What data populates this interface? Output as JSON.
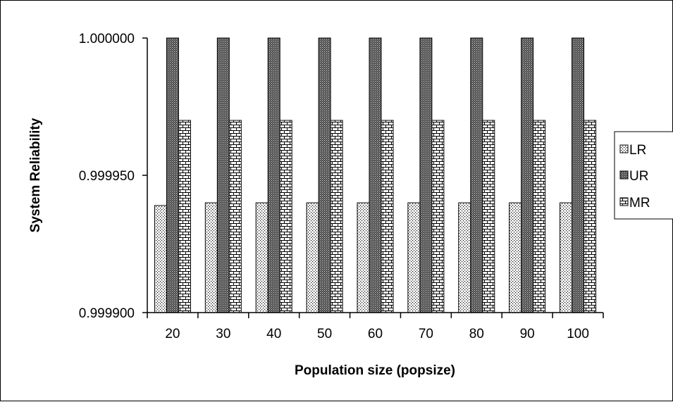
{
  "chart_data": {
    "type": "bar",
    "title": "",
    "xlabel": "Population size (popsize)",
    "ylabel": "System Reliability",
    "categories": [
      "20",
      "30",
      "40",
      "50",
      "60",
      "70",
      "80",
      "90",
      "100"
    ],
    "series": [
      {
        "name": "LR",
        "pattern": "dots",
        "values": [
          0.999939,
          0.99994,
          0.99994,
          0.99994,
          0.99994,
          0.99994,
          0.99994,
          0.99994,
          0.99994
        ]
      },
      {
        "name": "UR",
        "pattern": "dense",
        "values": [
          1.0,
          1.0,
          1.0,
          1.0,
          1.0,
          1.0,
          1.0,
          1.0,
          1.0
        ]
      },
      {
        "name": "MR",
        "pattern": "bricks",
        "values": [
          0.99997,
          0.99997,
          0.99997,
          0.99997,
          0.99997,
          0.99997,
          0.99997,
          0.99997,
          0.99997
        ]
      }
    ],
    "ylim": [
      0.9999,
      1.0
    ],
    "yticks": [
      "0.999900",
      "0.999950",
      "1.000000"
    ],
    "grid": false,
    "legend_position": "right"
  }
}
